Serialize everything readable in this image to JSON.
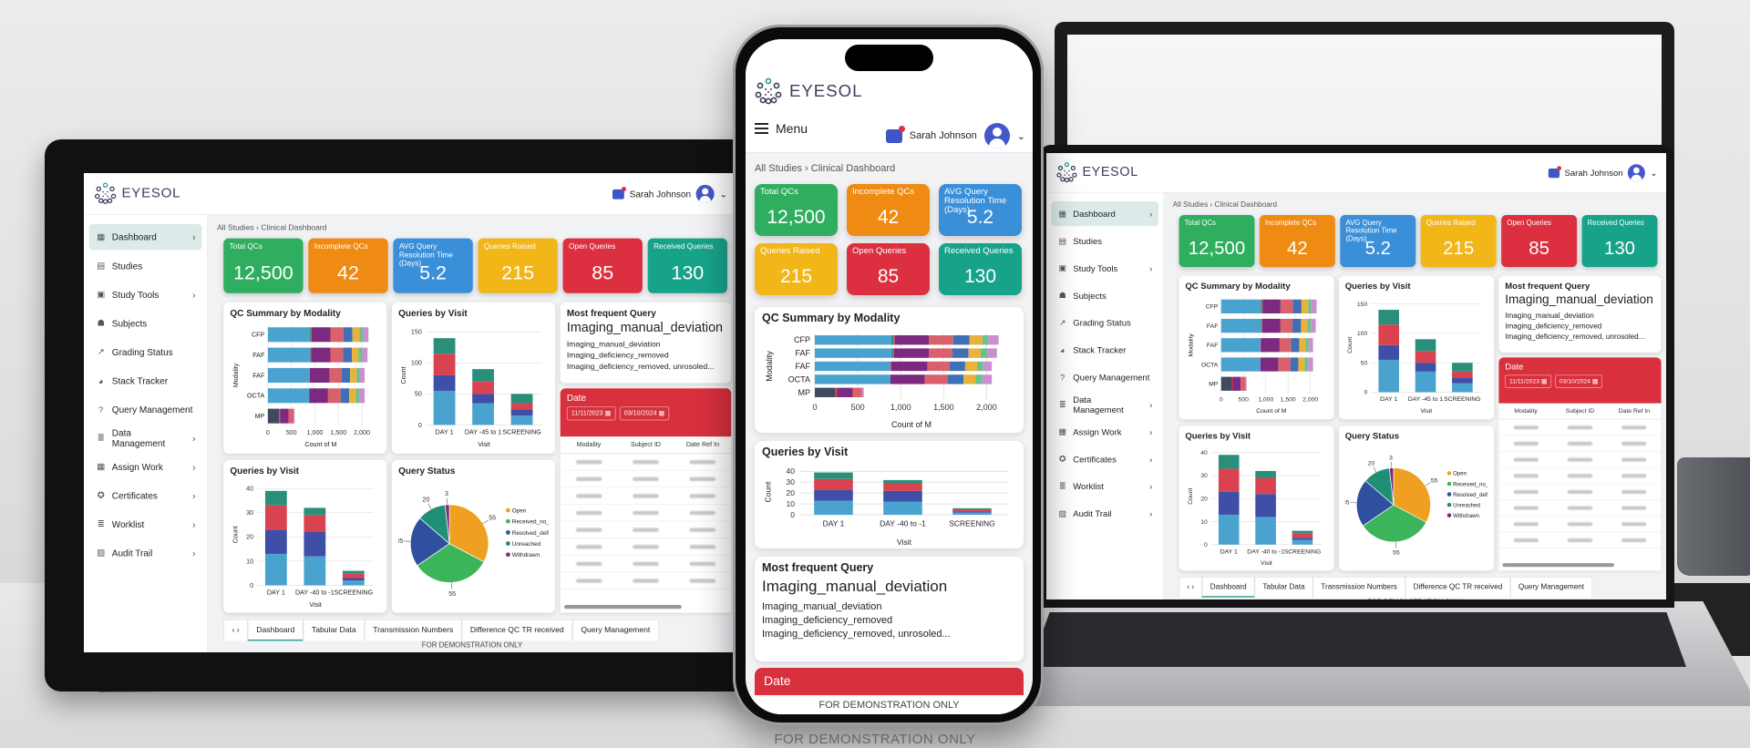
{
  "brand": "EYESOL",
  "user": {
    "name": "Sarah Johnson"
  },
  "menu_label": "Menu",
  "breadcrumb": {
    "root": "All Studies",
    "separator": "›",
    "current": "Clinical Dashboard"
  },
  "sidebar": {
    "items": [
      {
        "label": "Dashboard",
        "icon": "dashboard-icon",
        "glyph": "▦",
        "chevron": "›",
        "active": true
      },
      {
        "label": "Studies",
        "icon": "book-icon",
        "glyph": "▤",
        "chevron": ""
      },
      {
        "label": "Study Tools",
        "icon": "calendar-icon",
        "glyph": "▣",
        "chevron": "›"
      },
      {
        "label": "Subjects",
        "icon": "users-icon",
        "glyph": "☗",
        "chevron": ""
      },
      {
        "label": "Grading Status",
        "icon": "line-chart-icon",
        "glyph": "↗",
        "chevron": ""
      },
      {
        "label": "Stack Tracker",
        "icon": "pie-icon",
        "glyph": "◕",
        "chevron": ""
      },
      {
        "label": "Query Management",
        "icon": "question-icon",
        "glyph": "?",
        "chevron": ""
      },
      {
        "label": "Data Management",
        "icon": "database-icon",
        "glyph": "≣",
        "chevron": "›"
      },
      {
        "label": "Assign Work",
        "icon": "grid-icon",
        "glyph": "▦",
        "chevron": "›"
      },
      {
        "label": "Certificates",
        "icon": "ribbon-icon",
        "glyph": "✪",
        "chevron": "›"
      },
      {
        "label": "Worklist",
        "icon": "list-icon",
        "glyph": "≣",
        "chevron": "›"
      },
      {
        "label": "Audit Trail",
        "icon": "audit-icon",
        "glyph": "▨",
        "chevron": "›"
      }
    ]
  },
  "kpis": [
    {
      "label": "Total QCs",
      "value": "12,500",
      "color": "#2fae5f"
    },
    {
      "label": "Incomplete QCs",
      "value": "42",
      "color": "#ef8a12"
    },
    {
      "label": "AVG Query Resolution Time (Days)",
      "value": "5.2",
      "color": "#3a8fd9"
    },
    {
      "label": "Queries Raised",
      "value": "215",
      "color": "#f2b619"
    },
    {
      "label": "Open Queries",
      "value": "85",
      "color": "#dc3040"
    },
    {
      "label": "Received Queries",
      "value": "130",
      "color": "#17a38a"
    }
  ],
  "chart_data": [
    {
      "type": "bar",
      "orientation": "horizontal",
      "stacked": true,
      "title": "QC Summary by Modality",
      "xlabel": "Count of M",
      "ylabel": "Modality",
      "categories": [
        "CFP",
        "FAF",
        "FAF",
        "OCTA",
        "MP"
      ],
      "xlim": [
        0,
        2250
      ],
      "xticks": [
        0,
        500,
        1000,
        1500,
        2000
      ],
      "xtick_labels": [
        "0",
        "500",
        "1,000",
        "1,500",
        "2,000"
      ],
      "series": [
        {
          "color": "#3f4a5e",
          "values": [
            0,
            0,
            0,
            0,
            240
          ]
        },
        {
          "color": "#4aa3cf",
          "values": [
            890,
            890,
            880,
            880,
            0
          ]
        },
        {
          "color": "#2a8f7a",
          "values": [
            25,
            20,
            0,
            0,
            0
          ]
        },
        {
          "color": "#d8434f",
          "values": [
            15,
            10,
            10,
            0,
            20
          ]
        },
        {
          "color": "#7b2a7f",
          "values": [
            400,
            410,
            420,
            400,
            180
          ]
        },
        {
          "color": "#d9616b",
          "values": [
            280,
            270,
            260,
            270,
            110
          ]
        },
        {
          "color": "#3f6fb5",
          "values": [
            190,
            190,
            180,
            180,
            0
          ]
        },
        {
          "color": "#e8b23c",
          "values": [
            150,
            140,
            140,
            140,
            0
          ]
        },
        {
          "color": "#6cc08b",
          "values": [
            70,
            80,
            70,
            80,
            0
          ]
        },
        {
          "color": "#c98fd0",
          "values": [
            120,
            110,
            100,
            110,
            20
          ]
        }
      ]
    },
    {
      "type": "bar",
      "stacked": true,
      "title": "Queries by Visit",
      "xlabel": "Visit",
      "ylabel": "Count",
      "categories": [
        "DAY 1",
        "DAY -45 to 1",
        "SCREENING"
      ],
      "ylim": [
        0,
        160
      ],
      "yticks": [
        0,
        50,
        100,
        150
      ],
      "series": [
        {
          "color": "#4aa3cf",
          "values": [
            55,
            35,
            15
          ]
        },
        {
          "color": "#3f4fa8",
          "values": [
            25,
            15,
            10
          ]
        },
        {
          "color": "#d8434f",
          "values": [
            35,
            20,
            10
          ]
        },
        {
          "color": "#2a8f7a",
          "values": [
            25,
            20,
            15
          ]
        }
      ]
    },
    {
      "type": "bar",
      "stacked": true,
      "title": "Queries by Visit",
      "xlabel": "Visit",
      "ylabel": "Count",
      "categories": [
        "DAY 1",
        "DAY -40 to -1",
        "SCREENING"
      ],
      "ylim": [
        0,
        42
      ],
      "yticks": [
        0,
        10,
        20,
        30,
        40
      ],
      "series": [
        {
          "color": "#4aa3cf",
          "values": [
            13,
            12,
            2
          ]
        },
        {
          "color": "#3f4fa8",
          "values": [
            10,
            10,
            1
          ]
        },
        {
          "color": "#d8434f",
          "values": [
            10,
            7,
            2
          ]
        },
        {
          "color": "#2a8f7a",
          "values": [
            6,
            3,
            1
          ]
        }
      ]
    },
    {
      "type": "pie",
      "title": "Query Status",
      "legend": "right",
      "labels": [
        "Open",
        "Received_no_reminder",
        "Resolved_deficiency_removed",
        "Unreached",
        "Withdrawn"
      ],
      "values": [
        55,
        55,
        35,
        20,
        3
      ],
      "colors": [
        "#f0a020",
        "#3cb55a",
        "#2f4f9f",
        "#1f8f76",
        "#7b2a7f"
      ]
    }
  ],
  "most_frequent_query": {
    "title": "Most frequent Query",
    "top": "Imaging_manual_deviation",
    "items": [
      "Imaging_manual_deviation",
      "Imaging_deficiency_removed",
      "Imaging_deficiency_removed, unrosoled..."
    ]
  },
  "date_filter": {
    "label": "Date",
    "from": "11/11/2023",
    "to": "03/10/2024",
    "calendar_icon": "calendar-icon"
  },
  "table": {
    "headers": [
      "Modality",
      "Subject ID",
      "Date Ref In"
    ]
  },
  "tabs": [
    {
      "label": "Dashboard",
      "active": true
    },
    {
      "label": "Tabular Data"
    },
    {
      "label": "Transmission Numbers"
    },
    {
      "label": "Difference QC TR received"
    },
    {
      "label": "Query Management"
    }
  ],
  "watermark": "FOR DEMONSTRATION ONLY",
  "colors": {
    "accent": "#2a9d8f",
    "brand": "#3b3f5c",
    "date_header": "#d9303d",
    "active_nav": "#dcebe9"
  }
}
